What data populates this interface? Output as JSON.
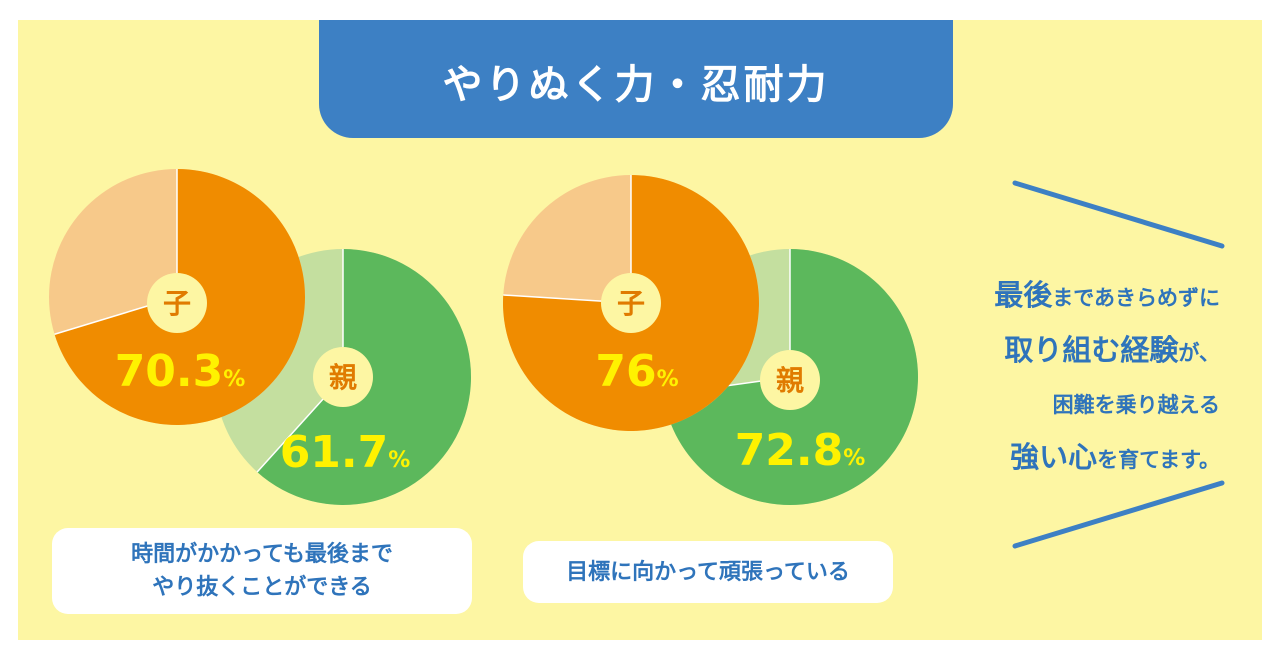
{
  "title": "やりぬく力・忍耐力",
  "colors": {
    "background": "#fdf6a3",
    "banner": "#3d80c4",
    "child_main": "#f08c00",
    "child_rest": "#f7c98a",
    "parent_main": "#5cb85c",
    "parent_rest": "#c4df9f",
    "label_circle": "#fdf6a3",
    "child_pct_text": "#fff200",
    "parent_pct_text": "#fff200",
    "label_text": "#e07b00",
    "message_text": "#2f74bb"
  },
  "chart_data": [
    {
      "type": "pie",
      "caption_lines": [
        "時間がかかっても最後まで",
        "やり抜くことができる"
      ],
      "series": [
        {
          "name": "子",
          "value": 70.3,
          "value_label": "70.3",
          "unit": "%"
        },
        {
          "name": "親",
          "value": 61.7,
          "value_label": "61.7",
          "unit": "%"
        }
      ]
    },
    {
      "type": "pie",
      "caption_lines": [
        "目標に向かって頑張っている"
      ],
      "series": [
        {
          "name": "子",
          "value": 76,
          "value_label": "76",
          "unit": "%"
        },
        {
          "name": "親",
          "value": 72.8,
          "value_label": "72.8",
          "unit": "%"
        }
      ]
    }
  ],
  "message": {
    "line1": {
      "strong": "最後",
      "rest": "まであきらめずに"
    },
    "line2": {
      "strong": "取り組む経験",
      "rest": "が、"
    },
    "line3": {
      "rest": "困難を乗り越える"
    },
    "line4": {
      "strong": "強い心",
      "rest": "を育てます。"
    }
  }
}
